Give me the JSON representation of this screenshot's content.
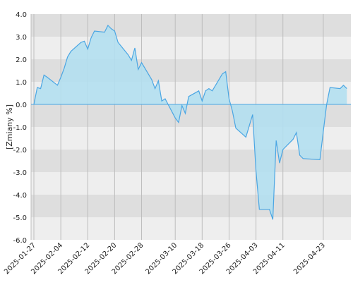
{
  "chart_data": {
    "type": "area",
    "title": "",
    "xlabel": "",
    "ylabel": "[Zmiany %]",
    "ylim": [
      -6.0,
      4.0
    ],
    "y_ticks": [
      "4.0",
      "3.0",
      "2.0",
      "1.0",
      "0.0",
      "-1.0",
      "-2.0",
      "-3.0",
      "-4.0",
      "-5.0",
      "-6.0"
    ],
    "x_ticks": [
      "2025-01-27",
      "2025-02-04",
      "2025-02-12",
      "2025-02-20",
      "2025-02-28",
      "2025-03-10",
      "2025-03-18",
      "2025-03-26",
      "2025-04-03",
      "2025-04-11",
      "2025-04-23"
    ],
    "grid": true,
    "fill_color": "#b3dff0",
    "line_color": "#4ba6e3",
    "band_colors": [
      "#dedede",
      "#eeeeee"
    ],
    "series": [
      {
        "x": [
          "2025-01-27",
          "2025-01-28",
          "2025-01-29",
          "2025-01-30",
          "2025-01-31",
          "2025-02-03",
          "2025-02-04",
          "2025-02-05",
          "2025-02-06",
          "2025-02-07",
          "2025-02-10",
          "2025-02-11",
          "2025-02-12",
          "2025-02-13",
          "2025-02-14",
          "2025-02-17",
          "2025-02-18",
          "2025-02-19",
          "2025-02-20",
          "2025-02-21",
          "2025-02-24",
          "2025-02-25",
          "2025-02-26",
          "2025-02-27",
          "2025-02-28",
          "2025-03-03",
          "2025-03-04",
          "2025-03-05",
          "2025-03-06",
          "2025-03-07",
          "2025-03-10",
          "2025-03-11",
          "2025-03-12",
          "2025-03-13",
          "2025-03-14",
          "2025-03-17",
          "2025-03-18",
          "2025-03-19",
          "2025-03-20",
          "2025-03-21",
          "2025-03-24",
          "2025-03-25",
          "2025-03-26",
          "2025-03-27",
          "2025-03-28",
          "2025-03-31",
          "2025-04-01",
          "2025-04-02",
          "2025-04-03",
          "2025-04-04",
          "2025-04-07",
          "2025-04-08",
          "2025-04-09",
          "2025-04-10",
          "2025-04-11",
          "2025-04-14",
          "2025-04-15",
          "2025-04-16",
          "2025-04-17",
          "2025-04-22",
          "2025-04-23",
          "2025-04-24",
          "2025-04-25",
          "2025-04-28",
          "2025-04-29",
          "2025-04-30"
        ],
        "values": [
          0.0,
          0.75,
          0.7,
          1.3,
          1.2,
          0.85,
          1.2,
          1.6,
          2.1,
          2.35,
          2.75,
          2.8,
          2.45,
          2.95,
          3.25,
          3.2,
          3.5,
          3.35,
          3.25,
          2.75,
          2.2,
          1.95,
          2.5,
          1.55,
          1.85,
          1.1,
          0.7,
          1.05,
          0.15,
          0.25,
          -0.6,
          -0.8,
          -0.05,
          -0.4,
          0.35,
          0.6,
          0.15,
          0.6,
          0.7,
          0.6,
          1.35,
          1.45,
          0.25,
          -0.3,
          -1.05,
          -1.45,
          -0.95,
          -0.45,
          -2.95,
          -4.65,
          -4.65,
          -5.1,
          -1.6,
          -2.6,
          -2.0,
          -1.55,
          -1.25,
          -2.25,
          -2.4,
          -2.45,
          -1.2,
          0.0,
          0.75,
          0.7,
          0.85,
          0.7
        ]
      }
    ]
  }
}
